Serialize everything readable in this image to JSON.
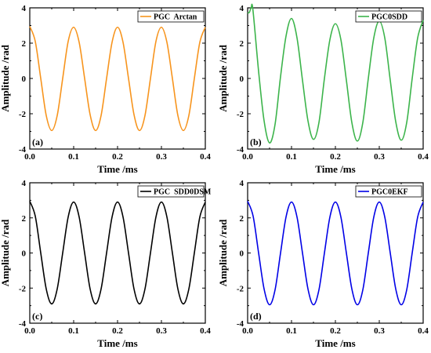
{
  "chart_data": [
    {
      "type": "line",
      "panel_label": "(a)",
      "xlabel": "Time /ms",
      "ylabel": "Amplitude /rad",
      "xlim": [
        0.0,
        0.4
      ],
      "ylim": [
        -4,
        4
      ],
      "xticks": [
        "0.0",
        "0.1",
        "0.2",
        "0.3",
        "0.4"
      ],
      "yticks": [
        "-4",
        "-2",
        "0",
        "2",
        "4"
      ],
      "legend_position": "top-right",
      "series": [
        {
          "name": "PGC  Arctan",
          "color": "#f7941d",
          "x": [
            0,
            0.0125,
            0.025,
            0.0375,
            0.05,
            0.0625,
            0.075,
            0.0875,
            0.1,
            0.1125,
            0.125,
            0.1375,
            0.15,
            0.1625,
            0.175,
            0.1875,
            0.2,
            0.2125,
            0.225,
            0.2375,
            0.25,
            0.2625,
            0.275,
            0.2875,
            0.3,
            0.3125,
            0.325,
            0.3375,
            0.35,
            0.3625,
            0.375,
            0.3875,
            0.4
          ],
          "y": [
            2.95,
            2.1,
            0,
            -2.1,
            -2.95,
            -2.1,
            0,
            2.1,
            2.9,
            2.05,
            0,
            -2.05,
            -2.95,
            -2.1,
            0,
            2.05,
            2.9,
            2.05,
            0,
            -2.05,
            -2.95,
            -2.1,
            0,
            2.1,
            2.9,
            2.05,
            0,
            -2.1,
            -2.95,
            -2.1,
            0,
            2.05,
            2.9
          ]
        }
      ]
    },
    {
      "type": "line",
      "panel_label": "(b)",
      "xlabel": "Time /ms",
      "ylabel": "Amplitude /rad",
      "xlim": [
        0.0,
        0.4
      ],
      "ylim": [
        -4,
        4
      ],
      "xticks": [
        "0.0",
        "0.1",
        "0.2",
        "0.3",
        "0.4"
      ],
      "yticks": [
        "-4",
        "-2",
        "0",
        "2",
        "4"
      ],
      "legend_position": "top-right",
      "series": [
        {
          "name": "PGC0SDD",
          "color": "#3cb44b",
          "x": [
            0,
            0.004,
            0.008,
            0.012,
            0.025,
            0.0375,
            0.05,
            0.0625,
            0.075,
            0.0875,
            0.1,
            0.1125,
            0.125,
            0.1375,
            0.15,
            0.1625,
            0.175,
            0.1875,
            0.2,
            0.2125,
            0.225,
            0.2375,
            0.25,
            0.2625,
            0.275,
            0.2875,
            0.3,
            0.3125,
            0.325,
            0.3375,
            0.35,
            0.3625,
            0.375,
            0.3875,
            0.4
          ],
          "y": [
            3.7,
            3.75,
            4.0,
            3.9,
            0.4,
            -2.4,
            -3.65,
            -2.6,
            0.1,
            2.4,
            3.4,
            2.3,
            -0.1,
            -2.4,
            -3.45,
            -2.5,
            0,
            2.2,
            3.1,
            2.2,
            -0.1,
            -2.5,
            -3.55,
            -2.5,
            0,
            2.3,
            3.25,
            2.3,
            -0.1,
            -2.45,
            -3.5,
            -2.5,
            0,
            2.3,
            3.3
          ]
        }
      ]
    },
    {
      "type": "line",
      "panel_label": "(c)",
      "xlabel": "Time /ms",
      "ylabel": "Amplitude /rad",
      "xlim": [
        0.0,
        0.4
      ],
      "ylim": [
        -4,
        4
      ],
      "xticks": [
        "0.0",
        "0.1",
        "0.2",
        "0.3",
        "0.4"
      ],
      "yticks": [
        "-4",
        "-2",
        "0",
        "2",
        "4"
      ],
      "legend_position": "top-right",
      "series": [
        {
          "name": "PGC  SDD0DSM",
          "color": "#000000",
          "x": [
            0,
            0.0125,
            0.025,
            0.0375,
            0.05,
            0.0625,
            0.075,
            0.0875,
            0.1,
            0.1125,
            0.125,
            0.1375,
            0.15,
            0.1625,
            0.175,
            0.1875,
            0.2,
            0.2125,
            0.225,
            0.2375,
            0.25,
            0.2625,
            0.275,
            0.2875,
            0.3,
            0.3125,
            0.325,
            0.3375,
            0.35,
            0.3625,
            0.375,
            0.3875,
            0.4
          ],
          "y": [
            2.95,
            2.1,
            0,
            -2.05,
            -2.9,
            -2.05,
            0,
            2.05,
            2.9,
            2.05,
            0,
            -2.05,
            -2.9,
            -2.05,
            0,
            2.05,
            2.9,
            2.05,
            0,
            -2.05,
            -2.9,
            -2.05,
            0,
            2.05,
            2.9,
            2.05,
            0,
            -2.05,
            -2.9,
            -2.05,
            0,
            2.05,
            2.9
          ]
        }
      ]
    },
    {
      "type": "line",
      "panel_label": "(d)",
      "xlabel": "Time /ms",
      "ylabel": "Amplitude /rad",
      "xlim": [
        0.0,
        0.4
      ],
      "ylim": [
        -4,
        4
      ],
      "xticks": [
        "0.0",
        "0.1",
        "0.2",
        "0.3",
        "0.4"
      ],
      "yticks": [
        "-4",
        "-2",
        "0",
        "2",
        "4"
      ],
      "legend_position": "top-right",
      "series": [
        {
          "name": "PGC0EKF",
          "color": "#0000e6",
          "x": [
            0,
            0.0125,
            0.025,
            0.0375,
            0.05,
            0.0625,
            0.075,
            0.0875,
            0.1,
            0.1125,
            0.125,
            0.1375,
            0.15,
            0.1625,
            0.175,
            0.1875,
            0.2,
            0.2125,
            0.225,
            0.2375,
            0.25,
            0.2625,
            0.275,
            0.2875,
            0.3,
            0.3125,
            0.325,
            0.3375,
            0.35,
            0.3625,
            0.375,
            0.3875,
            0.4
          ],
          "y": [
            2.95,
            2.1,
            0,
            -2.05,
            -2.95,
            -2.1,
            0,
            2.05,
            2.9,
            2.05,
            0,
            -2.05,
            -2.95,
            -2.1,
            0,
            2.05,
            2.9,
            2.05,
            0,
            -2.05,
            -2.95,
            -2.1,
            0,
            2.05,
            2.9,
            2.05,
            0,
            -2.05,
            -2.95,
            -2.1,
            0,
            2.05,
            2.9
          ]
        }
      ]
    }
  ]
}
